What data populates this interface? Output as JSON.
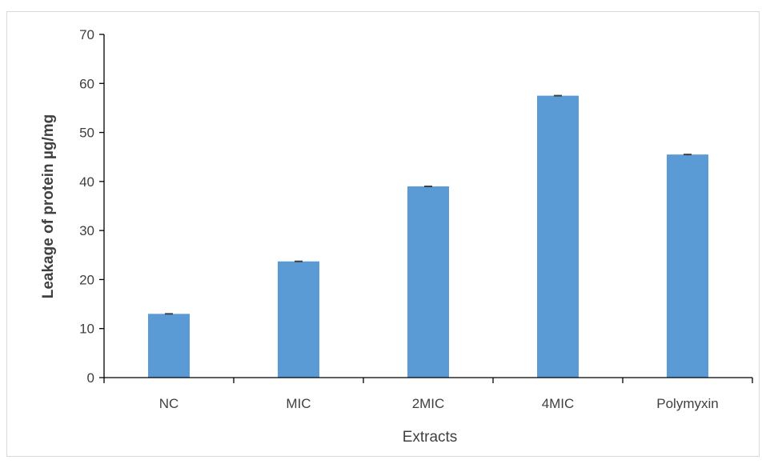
{
  "chart_data": {
    "type": "bar",
    "title": "",
    "xlabel": "Extracts",
    "ylabel": "Leakage of protein µg/mg",
    "categories": [
      "NC",
      "MIC",
      "2MIC",
      "4MIC",
      "Polymyxin"
    ],
    "values": [
      13.0,
      23.7,
      39.0,
      57.5,
      45.5
    ],
    "error": [
      0.15,
      0.15,
      0.15,
      0.15,
      0.15
    ],
    "ylim": [
      0,
      70
    ],
    "yticks": [
      "0",
      "10",
      "20",
      "30",
      "40",
      "50",
      "60",
      "70"
    ],
    "grid": false,
    "legend": "none",
    "colors": {
      "bar": "#5b9bd5",
      "axis": "#000000",
      "error_bar": "#404040",
      "text": "#404040"
    }
  }
}
